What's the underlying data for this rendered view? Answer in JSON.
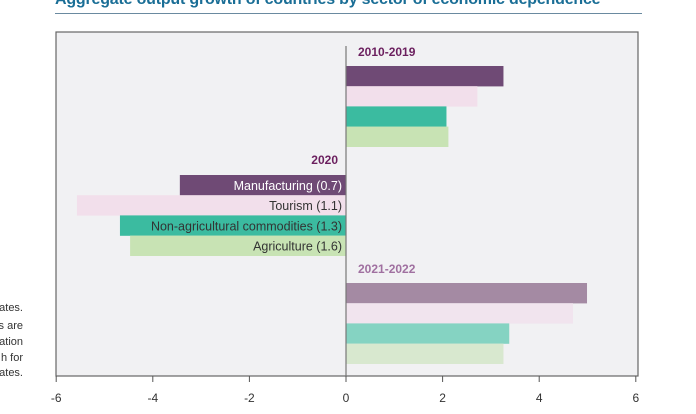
{
  "title": "Aggregate output growth of countries by sector of economic dependence",
  "side_note_fragments": [
    "ates.",
    "s are",
    "ation",
    "h for",
    "ates."
  ],
  "colors": {
    "manufacturing": "#6f4a75",
    "tourism": "#f2dfeb",
    "non_agricultural": "#3bbba0",
    "agriculture": "#c8e3b4",
    "manufacturing_light": "#a48aa3",
    "tourism_light": "#f1e4ee",
    "non_agricultural_light": "#85d3c2",
    "agriculture_light": "#d8e8cf",
    "period_label": "#6b1f5e",
    "period_label_light": "#a070a0",
    "plot_background": "#f1f1f3"
  },
  "chart_data": {
    "type": "bar",
    "orientation": "horizontal",
    "title": "Aggregate output growth of countries by sector of economic dependence",
    "xlim": [
      -6,
      6
    ],
    "xticks": [
      "-6",
      "-4",
      "-2",
      "0",
      "2",
      "4",
      "6"
    ],
    "grid": false,
    "groups": [
      {
        "label": "2010-2019",
        "values": [
          3.26,
          2.72,
          2.08,
          2.12
        ]
      },
      {
        "label": "2020",
        "values": [
          -3.44,
          -5.57,
          -4.68,
          -4.47
        ]
      },
      {
        "label": "2021-2022",
        "values": [
          4.99,
          4.7,
          3.38,
          3.26
        ]
      }
    ],
    "series_labels": [
      "Manufacturing (0.7)",
      "Tourism (1.1)",
      "Non-agricultural commodities (1.3)",
      "Agriculture (1.6)"
    ]
  }
}
